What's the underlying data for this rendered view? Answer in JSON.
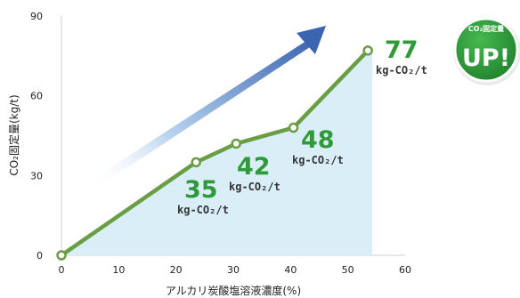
{
  "chart_data": {
    "type": "line",
    "title": "",
    "xlabel": "アルカリ炭酸塩溶液濃度(%)",
    "ylabel": "CO₂固定量(kg/t)",
    "xlim": [
      0,
      60
    ],
    "ylim": [
      0,
      90
    ],
    "x_ticks": [
      "0",
      "10",
      "20",
      "30",
      "40",
      "50",
      "60"
    ],
    "y_ticks": [
      "0",
      "30",
      "60",
      "90"
    ],
    "fill_area": true,
    "grid": false,
    "series": [
      {
        "x": [
          0,
          23.5,
          30.5,
          40.5,
          53.5
        ],
        "y": [
          0,
          35,
          42,
          48,
          77
        ]
      }
    ],
    "annotations": [
      {
        "value": "35",
        "unit": "kg-CO₂/t"
      },
      {
        "value": "42",
        "unit": "kg-CO₂/t"
      },
      {
        "value": "48",
        "unit": "kg-CO₂/t"
      },
      {
        "value": "77",
        "unit": "kg-CO₂/t"
      }
    ]
  },
  "badge": {
    "top_text": "CO₂固定量",
    "main_text": "UP!"
  },
  "colors": {
    "line": "#6a9e45",
    "fill": "#d9eef7",
    "value_text": "#2e9a3a",
    "badge": "#2e9a3a",
    "arrow_end": "#3b65b0"
  }
}
